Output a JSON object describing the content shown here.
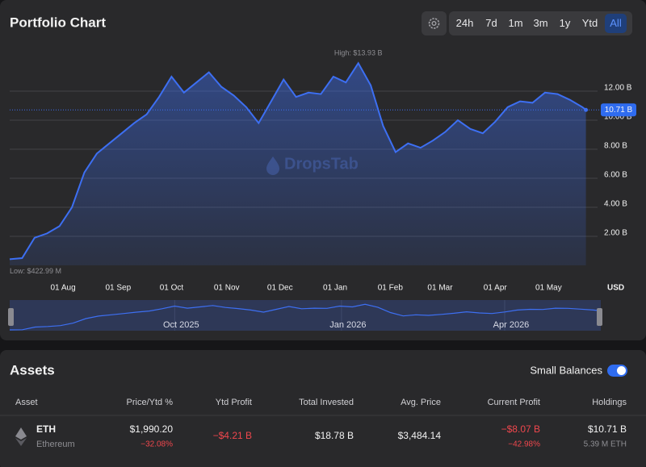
{
  "header": {
    "title": "Portfolio Chart",
    "ranges": [
      "24h",
      "7d",
      "1m",
      "3m",
      "1y",
      "Ytd",
      "All"
    ],
    "active_range": "All"
  },
  "chart_data": {
    "type": "line",
    "color": "#3d6ff2",
    "x": [
      "2025-07-02",
      "2025-07-09",
      "2025-07-16",
      "2025-07-23",
      "2025-07-30",
      "2025-08-06",
      "2025-08-13",
      "2025-08-20",
      "2025-08-27",
      "2025-09-03",
      "2025-09-10",
      "2025-09-17",
      "2025-09-24",
      "2025-10-01",
      "2025-10-08",
      "2025-10-15",
      "2025-10-22",
      "2025-10-29",
      "2025-11-05",
      "2025-11-12",
      "2025-11-19",
      "2025-11-26",
      "2025-12-03",
      "2025-12-10",
      "2025-12-17",
      "2025-12-24",
      "2025-12-31",
      "2026-01-07",
      "2026-01-14",
      "2026-01-21",
      "2026-01-28",
      "2026-02-04",
      "2026-02-11",
      "2026-02-18",
      "2026-02-25",
      "2026-03-04",
      "2026-03-11",
      "2026-03-18",
      "2026-03-25",
      "2026-04-01",
      "2026-04-08",
      "2026-04-15",
      "2026-04-22",
      "2026-04-29",
      "2026-05-06",
      "2026-05-13",
      "2026-05-20",
      "2026-05-22"
    ],
    "values": [
      0.42299,
      0.5,
      1.9,
      2.2,
      2.7,
      4.0,
      6.4,
      7.7,
      8.4,
      9.1,
      9.8,
      10.4,
      11.6,
      13.0,
      11.9,
      12.6,
      13.3,
      12.3,
      11.7,
      10.9,
      9.8,
      11.3,
      12.8,
      11.6,
      11.9,
      11.8,
      13.0,
      12.6,
      13.93,
      12.4,
      9.6,
      7.8,
      8.4,
      8.1,
      8.6,
      9.2,
      10.0,
      9.4,
      9.1,
      9.9,
      10.9,
      11.3,
      11.2,
      11.9,
      11.8,
      11.4,
      10.9,
      10.71
    ],
    "xlim": [
      "2025-07-02",
      "2026-05-24"
    ],
    "xticks": [
      {
        "value": "2025-08-01",
        "label": "01 Aug"
      },
      {
        "value": "2025-09-01",
        "label": "01 Sep"
      },
      {
        "value": "2025-10-01",
        "label": "01 Oct"
      },
      {
        "value": "2025-11-01",
        "label": "01 Nov"
      },
      {
        "value": "2025-12-01",
        "label": "01 Dec"
      },
      {
        "value": "2026-01-01",
        "label": "01 Jan"
      },
      {
        "value": "2026-02-01",
        "label": "01 Feb"
      },
      {
        "value": "2026-03-01",
        "label": "01 Mar"
      },
      {
        "value": "2026-04-01",
        "label": "01 Apr"
      },
      {
        "value": "2026-05-01",
        "label": "01 May"
      }
    ],
    "ylim": [
      0,
      14.5
    ],
    "yticks": [
      {
        "value": 2,
        "label": "2.00 B"
      },
      {
        "value": 4,
        "label": "4.00 B"
      },
      {
        "value": 6,
        "label": "6.00 B"
      },
      {
        "value": 8,
        "label": "8.00 B"
      },
      {
        "value": 10,
        "label": "10.00 B"
      },
      {
        "value": 12,
        "label": "12.00 B"
      }
    ],
    "grid": true,
    "y_unit": "USD",
    "high_label": "High: $13.93 B",
    "low_label": "Low: $422.99 M",
    "current_label": "10.71 B",
    "watermark": "DropsTab",
    "navigator_xticks": [
      {
        "value": "2025-10-01",
        "label": "Oct 2025"
      },
      {
        "value": "2026-01-01",
        "label": "Jan 2026"
      },
      {
        "value": "2026-04-01",
        "label": "Apr 2026"
      }
    ]
  },
  "assets": {
    "title": "Assets",
    "toggle_label": "Small Balances",
    "toggle_on": true,
    "columns": [
      "Asset",
      "Price/Ytd %",
      "Ytd Profit",
      "Total Invested",
      "Avg. Price",
      "Current Profit",
      "Holdings"
    ],
    "rows": [
      {
        "symbol": "ETH",
        "name": "Ethereum",
        "price": "$1,990.20",
        "ytd_pct": "−32.08%",
        "ytd_profit": "−$4.21 B",
        "total_invested": "$18.78 B",
        "avg_price": "$3,484.14",
        "current_profit": "−$8.07 B",
        "current_profit_pct": "−42.98%",
        "holdings": "$10.71 B",
        "holdings_amount": "5.39 M ETH"
      }
    ]
  }
}
